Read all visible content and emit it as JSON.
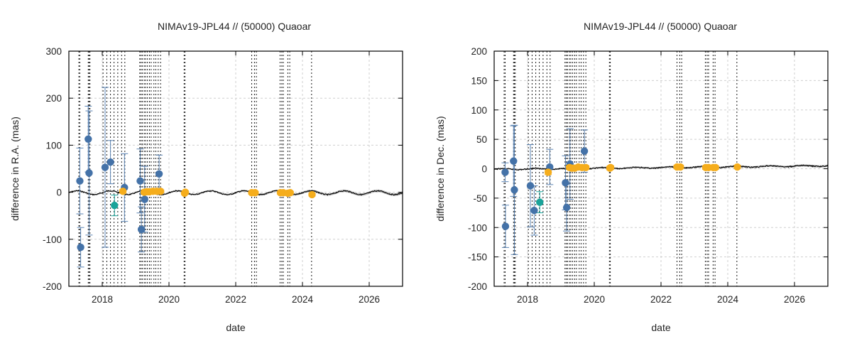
{
  "chart_data": [
    {
      "type": "scatter",
      "title": "NIMAv19-JPL44 // (50000) Quaoar",
      "xlabel": "date",
      "ylabel": "difference in R.A. (mas)",
      "xlim": [
        "2017-01-01",
        "2027-01-01"
      ],
      "ylim": [
        -200,
        300
      ],
      "x_ticks": [
        "2018",
        "2020",
        "2022",
        "2024",
        "2026"
      ],
      "y_ticks": [
        -200,
        -100,
        0,
        100,
        200,
        300
      ],
      "grid": true,
      "legend": "none",
      "colors": {
        "blue": "#4472a8",
        "teal": "#1aa39a",
        "orange": "#f5ad1c",
        "line": "#000000",
        "band": "#bdbdbd"
      },
      "observation_dates": [
        "2017-04-20",
        "2017-05-01",
        "2017-08-01",
        "2017-08-10",
        "2017-08-20",
        "2018-01-10",
        "2018-02-20",
        "2018-04-01",
        "2018-05-10",
        "2018-06-20",
        "2018-08-01",
        "2018-09-05",
        "2019-02-15",
        "2019-03-01",
        "2019-03-15",
        "2019-04-05",
        "2019-04-20",
        "2019-05-10",
        "2019-06-01",
        "2019-06-20",
        "2019-07-20",
        "2019-08-10",
        "2019-09-05",
        "2019-10-01",
        "2020-06-15",
        "2020-06-25",
        "2022-06-25",
        "2022-07-25",
        "2022-08-15",
        "2023-05-01",
        "2023-05-20",
        "2023-06-05",
        "2023-07-25",
        "2023-08-15",
        "2024-04-10"
      ],
      "series": [
        {
          "color": "blue",
          "points": [
            {
              "x": "2017-05-01",
              "y": 24,
              "err": 70
            },
            {
              "x": "2017-05-10",
              "y": -117,
              "err": 42
            },
            {
              "x": "2017-08-01",
              "y": 113,
              "err": 70
            },
            {
              "x": "2017-08-10",
              "y": 41,
              "err": 132
            },
            {
              "x": "2018-02-01",
              "y": 53,
              "err": 170
            },
            {
              "x": "2018-04-01",
              "y": 64,
              "err": 46
            },
            {
              "x": "2018-09-01",
              "y": 10,
              "err": 72
            },
            {
              "x": "2019-02-20",
              "y": 24,
              "err": 68
            },
            {
              "x": "2019-03-05",
              "y": -79,
              "err": 48
            },
            {
              "x": "2019-04-10",
              "y": -15,
              "err": 70
            },
            {
              "x": "2019-09-15",
              "y": 39,
              "err": 40
            }
          ]
        },
        {
          "color": "teal",
          "points": [
            {
              "x": "2018-05-15",
              "y": -28,
              "err": 22
            }
          ]
        },
        {
          "color": "orange",
          "points": [
            {
              "x": "2018-08-15",
              "y": 2,
              "err": 4
            },
            {
              "x": "2019-04-05",
              "y": 0,
              "err": 3
            },
            {
              "x": "2019-05-01",
              "y": 1,
              "err": 3
            },
            {
              "x": "2019-06-01",
              "y": 1,
              "err": 3
            },
            {
              "x": "2019-07-10",
              "y": 2,
              "err": 3
            },
            {
              "x": "2019-08-20",
              "y": 2,
              "err": 3
            },
            {
              "x": "2019-10-01",
              "y": 2,
              "err": 3
            },
            {
              "x": "2020-06-20",
              "y": -2,
              "err": 3
            },
            {
              "x": "2020-06-28",
              "y": 0,
              "err": 3
            },
            {
              "x": "2022-06-25",
              "y": -1,
              "err": 3
            },
            {
              "x": "2022-08-01",
              "y": -1,
              "err": 3
            },
            {
              "x": "2023-05-05",
              "y": -1,
              "err": 3
            },
            {
              "x": "2023-06-05",
              "y": -1,
              "err": 3
            },
            {
              "x": "2023-07-25",
              "y": -2,
              "err": 3
            },
            {
              "x": "2023-08-20",
              "y": -1,
              "err": 3
            },
            {
              "x": "2024-04-15",
              "y": -5,
              "err": 3
            }
          ]
        }
      ],
      "model_curve": {
        "description": "oscillating difference curve",
        "mean": -1,
        "amplitude": 4,
        "period_years": 1,
        "band_start_half_width": 1,
        "band_end_half_width": 3
      }
    },
    {
      "type": "scatter",
      "title": "NIMAv19-JPL44 // (50000) Quaoar",
      "xlabel": "date",
      "ylabel": "difference in Dec. (mas)",
      "xlim": [
        "2017-01-01",
        "2027-01-01"
      ],
      "ylim": [
        -200,
        200
      ],
      "x_ticks": [
        "2018",
        "2020",
        "2022",
        "2024",
        "2026"
      ],
      "y_ticks": [
        -200,
        -150,
        -100,
        -50,
        0,
        50,
        100,
        150,
        200
      ],
      "grid": true,
      "legend": "none",
      "colors": {
        "blue": "#4472a8",
        "teal": "#1aa39a",
        "orange": "#f5ad1c",
        "line": "#000000",
        "band": "#bdbdbd"
      },
      "observation_dates": [
        "2017-04-20",
        "2017-05-01",
        "2017-08-01",
        "2017-08-10",
        "2017-08-20",
        "2018-01-10",
        "2018-02-20",
        "2018-04-01",
        "2018-05-10",
        "2018-06-20",
        "2018-08-01",
        "2018-09-05",
        "2019-02-15",
        "2019-03-01",
        "2019-03-15",
        "2019-04-05",
        "2019-04-20",
        "2019-05-10",
        "2019-06-01",
        "2019-06-20",
        "2019-07-20",
        "2019-08-10",
        "2019-09-05",
        "2019-10-01",
        "2020-06-15",
        "2020-06-25",
        "2022-06-25",
        "2022-07-25",
        "2022-08-15",
        "2023-05-01",
        "2023-05-20",
        "2023-06-05",
        "2023-07-25",
        "2023-08-15",
        "2024-04-10"
      ],
      "series": [
        {
          "color": "blue",
          "points": [
            {
              "x": "2017-05-01",
              "y": -6,
              "err": 16
            },
            {
              "x": "2017-05-05",
              "y": -98,
              "err": 36
            },
            {
              "x": "2017-08-01",
              "y": 13,
              "err": 60
            },
            {
              "x": "2017-08-10",
              "y": -36,
              "err": 110
            },
            {
              "x": "2018-02-01",
              "y": -29,
              "err": 70
            },
            {
              "x": "2018-03-15",
              "y": -71,
              "err": 42
            },
            {
              "x": "2018-09-01",
              "y": 3,
              "err": 30
            },
            {
              "x": "2019-02-20",
              "y": -24,
              "err": 46
            },
            {
              "x": "2019-03-05",
              "y": -66,
              "err": 40
            },
            {
              "x": "2019-04-10",
              "y": 8,
              "err": 60
            },
            {
              "x": "2019-09-15",
              "y": 30,
              "err": 36
            }
          ]
        },
        {
          "color": "teal",
          "points": [
            {
              "x": "2018-05-15",
              "y": -57,
              "err": 18
            }
          ]
        },
        {
          "color": "orange",
          "points": [
            {
              "x": "2018-08-15",
              "y": -6,
              "err": 4
            },
            {
              "x": "2019-04-05",
              "y": 2,
              "err": 3
            },
            {
              "x": "2019-05-01",
              "y": 1,
              "err": 3
            },
            {
              "x": "2019-06-01",
              "y": 1,
              "err": 3
            },
            {
              "x": "2019-07-10",
              "y": 3,
              "err": 3
            },
            {
              "x": "2019-08-20",
              "y": 2,
              "err": 3
            },
            {
              "x": "2019-10-01",
              "y": 2,
              "err": 3
            },
            {
              "x": "2020-06-20",
              "y": 1,
              "err": 3
            },
            {
              "x": "2020-06-28",
              "y": 2,
              "err": 3
            },
            {
              "x": "2022-06-25",
              "y": 3,
              "err": 3
            },
            {
              "x": "2022-08-01",
              "y": 3,
              "err": 3
            },
            {
              "x": "2023-05-05",
              "y": 2,
              "err": 3
            },
            {
              "x": "2023-06-05",
              "y": 2,
              "err": 3
            },
            {
              "x": "2023-07-25",
              "y": 2,
              "err": 3
            },
            {
              "x": "2023-08-20",
              "y": 2,
              "err": 3
            },
            {
              "x": "2024-04-15",
              "y": 3,
              "err": 3
            }
          ]
        }
      ],
      "model_curve": {
        "description": "slow rising difference curve",
        "mean_start": -1,
        "mean_end": 5,
        "amplitude": 1,
        "period_years": 1,
        "band_start_half_width": 1,
        "band_end_half_width": 2
      }
    }
  ]
}
